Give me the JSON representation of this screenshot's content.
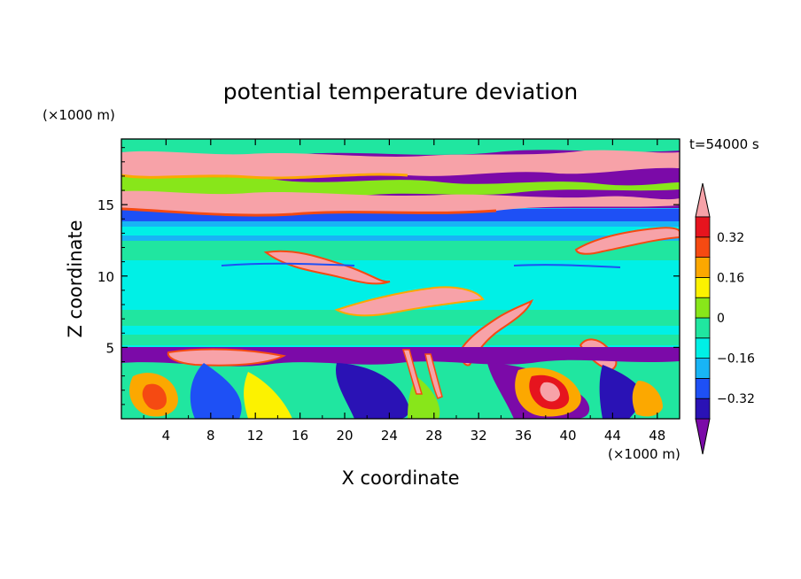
{
  "chart_data": {
    "type": "heatmap",
    "title": "potential temperature deviation",
    "time_label": "t=54000 s",
    "xlabel": "X coordinate",
    "ylabel": "Z coordinate",
    "x_unit": "(×1000 m)",
    "y_unit": "(×1000 m)",
    "xlim": [
      0,
      50
    ],
    "ylim": [
      0,
      19.6
    ],
    "x_ticks": [
      4,
      8,
      12,
      16,
      20,
      24,
      28,
      32,
      36,
      40,
      44,
      48
    ],
    "y_ticks": [
      5,
      10,
      15
    ],
    "colorbar": {
      "levels": [
        -0.4,
        -0.32,
        -0.24,
        -0.16,
        -0.08,
        0,
        0.08,
        0.16,
        0.24,
        0.32,
        0.4
      ],
      "tick_labels": [
        "0.32",
        "0.16",
        "0",
        "−0.16",
        "−0.32"
      ],
      "tick_values": [
        0.32,
        0.16,
        0,
        -0.16,
        -0.32
      ],
      "colors": [
        "#7b0aa8",
        "#2a12b5",
        "#1e50f5",
        "#18b4f5",
        "#00f0e6",
        "#20e6a0",
        "#88e61a",
        "#fcf200",
        "#fca800",
        "#f54a12",
        "#e6141e",
        "#f7a2a8"
      ],
      "extend": "both"
    },
    "layers": [
      {
        "zmin": 0,
        "zmax": 5,
        "description_value": -0.28
      },
      {
        "zmin": 5,
        "zmax": 12,
        "description_value": -0.06
      },
      {
        "zmin": 12,
        "zmax": 15.5,
        "description_value": -0.12
      },
      {
        "zmin": 15.5,
        "zmax": 19.6,
        "description_value": 0.4
      }
    ]
  }
}
